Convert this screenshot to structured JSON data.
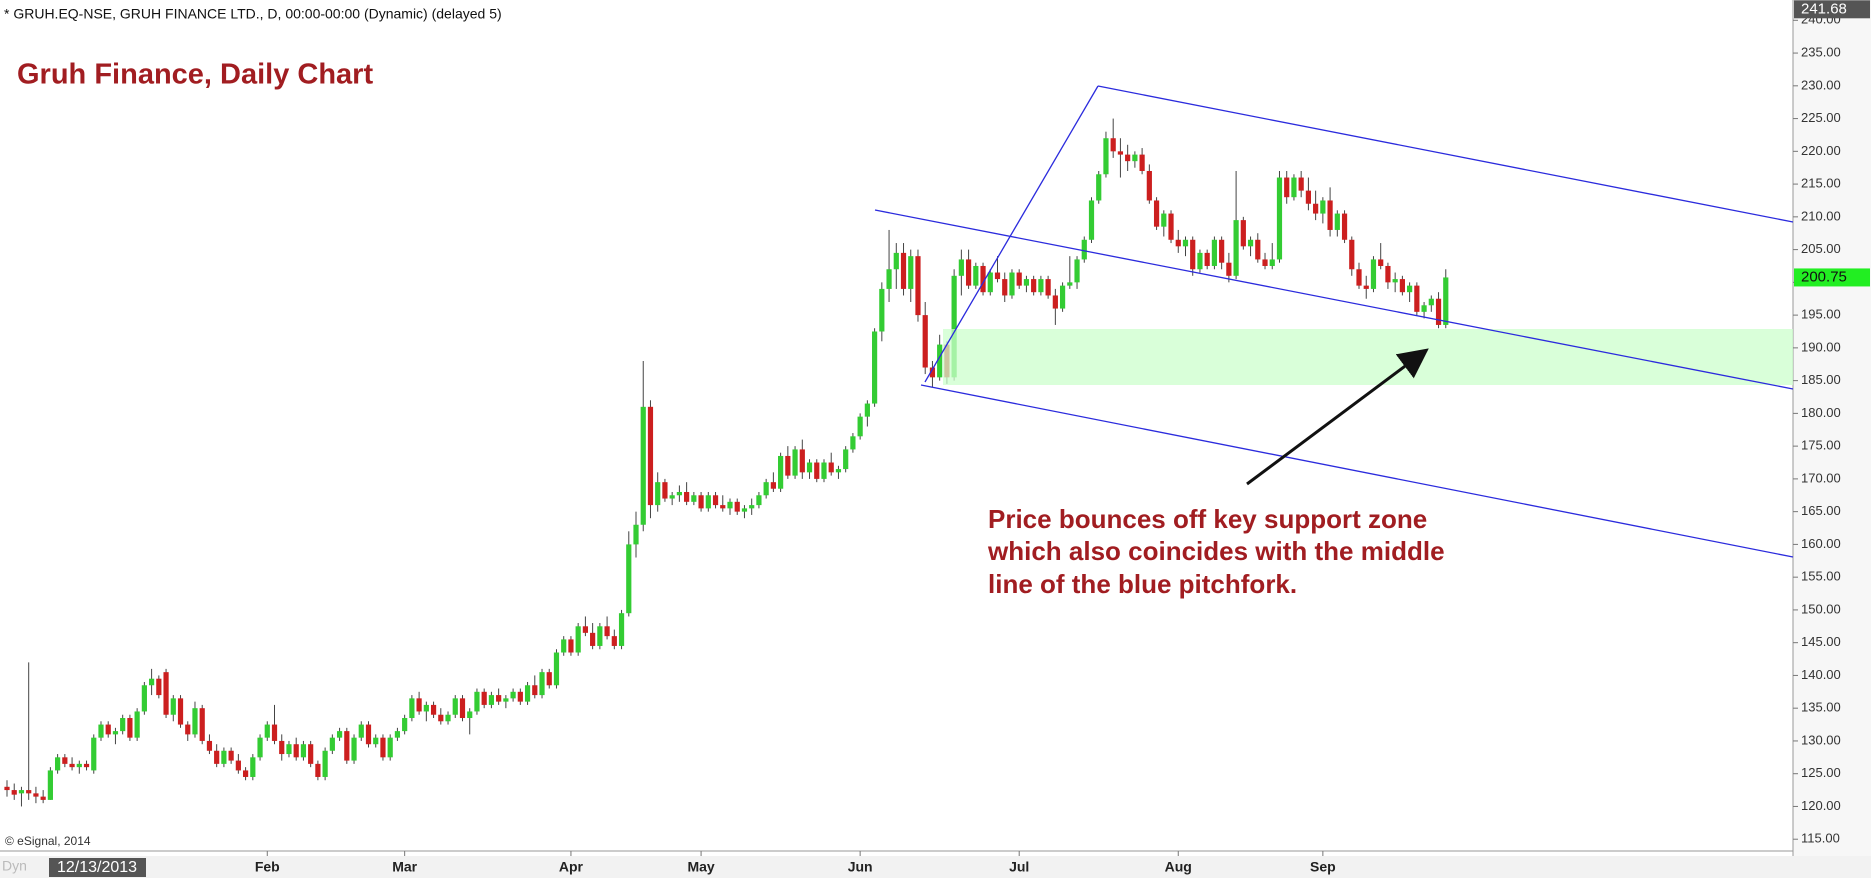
{
  "chart_data": {
    "type": "candlestick",
    "header": "* GRUH.EQ-NSE, GRUH FINANCE LTD., D, 00:00-00:00 (Dynamic) (delayed 5)",
    "title": "Gruh Finance, Daily Chart",
    "annotation": [
      "Price bounces off key support zone",
      "which also coincides with the middle",
      "line of the blue pitchfork."
    ],
    "copyright": "© eSignal, 2014",
    "cursor_prefix": "Dyn",
    "cursor_date": "12/13/2013",
    "up_color": "#33cc33",
    "down_color": "#cc1f1f",
    "wick_color": "#444444",
    "price_labels": [
      {
        "value": 241.68,
        "label": "241.68",
        "color": "#555555"
      },
      {
        "value": 200.75,
        "label": "200.75",
        "color": "#22ee22"
      }
    ],
    "ylim": [
      113.2,
      243.1
    ],
    "yticks": [
      {
        "value": 115,
        "label": "115.00"
      },
      {
        "value": 120,
        "label": "120.00"
      },
      {
        "value": 125,
        "label": "125.00"
      },
      {
        "value": 130,
        "label": "130.00"
      },
      {
        "value": 135,
        "label": "135.00"
      },
      {
        "value": 140,
        "label": "140.00"
      },
      {
        "value": 145,
        "label": "145.00"
      },
      {
        "value": 150,
        "label": "150.00"
      },
      {
        "value": 155,
        "label": "155.00"
      },
      {
        "value": 160,
        "label": "160.00"
      },
      {
        "value": 165,
        "label": "165.00"
      },
      {
        "value": 170,
        "label": "170.00"
      },
      {
        "value": 175,
        "label": "175.00"
      },
      {
        "value": 180,
        "label": "180.00"
      },
      {
        "value": 185,
        "label": "185.00"
      },
      {
        "value": 190,
        "label": "190.00"
      },
      {
        "value": 195,
        "label": "195.00"
      },
      {
        "value": 200,
        "label": "200.00"
      },
      {
        "value": 205,
        "label": "205.00"
      },
      {
        "value": 210,
        "label": "210.00"
      },
      {
        "value": 215,
        "label": "215.00"
      },
      {
        "value": 220,
        "label": "220.00"
      },
      {
        "value": 225,
        "label": "225.00"
      },
      {
        "value": 230,
        "label": "230.00"
      },
      {
        "value": 235,
        "label": "235.00"
      },
      {
        "value": 240,
        "label": "240.00"
      }
    ],
    "categories": [
      null,
      null,
      null,
      null,
      null,
      null,
      null,
      null,
      null,
      null,
      null,
      null,
      null,
      null,
      null,
      null,
      null,
      null,
      null,
      null,
      null,
      null,
      null,
      null,
      null,
      null,
      null,
      null,
      null,
      null,
      null,
      null,
      null,
      null,
      null,
      null,
      "Feb",
      null,
      null,
      null,
      null,
      null,
      null,
      null,
      null,
      null,
      null,
      null,
      null,
      null,
      null,
      null,
      null,
      null,
      null,
      "Mar",
      null,
      null,
      null,
      null,
      null,
      null,
      null,
      null,
      null,
      null,
      null,
      null,
      null,
      null,
      null,
      null,
      null,
      null,
      null,
      null,
      null,
      null,
      "Apr",
      null,
      null,
      null,
      null,
      null,
      null,
      null,
      null,
      null,
      null,
      null,
      null,
      null,
      null,
      null,
      null,
      null,
      "May",
      null,
      null,
      null,
      null,
      null,
      null,
      null,
      null,
      null,
      null,
      null,
      null,
      null,
      null,
      null,
      null,
      null,
      null,
      null,
      null,
      null,
      "Jun",
      null,
      null,
      null,
      null,
      null,
      null,
      null,
      null,
      null,
      null,
      null,
      null,
      null,
      null,
      null,
      null,
      null,
      null,
      null,
      null,
      null,
      "Jul",
      null,
      null,
      null,
      null,
      null,
      null,
      null,
      null,
      null,
      null,
      null,
      null,
      null,
      null,
      null,
      null,
      null,
      null,
      null,
      null,
      null,
      "Aug",
      null,
      null,
      null,
      null,
      null,
      null,
      null,
      null,
      null,
      null,
      null,
      null,
      null,
      null,
      null,
      null,
      null,
      null,
      null,
      "Sep",
      null,
      null,
      null,
      null,
      null,
      null,
      null,
      null,
      null,
      null,
      null,
      null,
      null,
      null,
      null,
      null,
      null
    ],
    "values": [
      [
        123,
        124,
        121.5,
        122.5
      ],
      [
        122.5,
        123.5,
        121,
        121.8
      ],
      [
        122,
        123,
        120,
        122.5
      ],
      [
        122.5,
        142,
        121,
        122
      ],
      [
        122,
        123,
        120.5,
        121.5
      ],
      [
        121.5,
        122.5,
        120.5,
        121
      ],
      [
        121,
        126,
        121,
        125.5
      ],
      [
        125.5,
        128,
        125,
        127.5
      ],
      [
        127.5,
        128,
        126,
        126.5
      ],
      [
        126.5,
        127.5,
        125.5,
        126
      ],
      [
        126,
        127,
        125,
        126.5
      ],
      [
        126.5,
        127,
        125.5,
        126
      ],
      [
        125.5,
        131,
        125,
        130.5
      ],
      [
        130.5,
        133,
        130,
        132.5
      ],
      [
        132.5,
        133,
        130.5,
        131
      ],
      [
        131,
        132,
        129.5,
        131.5
      ],
      [
        131.5,
        134,
        131,
        133.5
      ],
      [
        133.5,
        134,
        130,
        130.5
      ],
      [
        130.5,
        135,
        130,
        134.5
      ],
      [
        134.5,
        139,
        134,
        138.5
      ],
      [
        138.5,
        141,
        137,
        139.5
      ],
      [
        139.5,
        140,
        136.5,
        137
      ],
      [
        140.5,
        141,
        133.5,
        134
      ],
      [
        134,
        137,
        133,
        136.5
      ],
      [
        136.5,
        137,
        132,
        132.5
      ],
      [
        132.5,
        133,
        130,
        131
      ],
      [
        131,
        136,
        130.5,
        135
      ],
      [
        135,
        135.5,
        129.5,
        130
      ],
      [
        130,
        131,
        128,
        128.5
      ],
      [
        128.5,
        129.5,
        126,
        126.5
      ],
      [
        126.5,
        129,
        126,
        128.5
      ],
      [
        128.5,
        129,
        126.5,
        127
      ],
      [
        127,
        128,
        125,
        125.5
      ],
      [
        125.5,
        126,
        124,
        124.5
      ],
      [
        124.5,
        128,
        124,
        127.5
      ],
      [
        127.5,
        131,
        127,
        130.5
      ],
      [
        130.5,
        133,
        130,
        132.5
      ],
      [
        132.5,
        135.5,
        129.5,
        130
      ],
      [
        130,
        131,
        127,
        128
      ],
      [
        128,
        130,
        127.5,
        129.5
      ],
      [
        129.5,
        130.5,
        127,
        127.5
      ],
      [
        127.5,
        130,
        127,
        129.5
      ],
      [
        129.5,
        130,
        126,
        126.5
      ],
      [
        126.5,
        127,
        124,
        124.5
      ],
      [
        124.5,
        129,
        124,
        128.5
      ],
      [
        128.5,
        131,
        128,
        130.5
      ],
      [
        130.5,
        132,
        130,
        131.5
      ],
      [
        131.5,
        132,
        126.5,
        127
      ],
      [
        127,
        131,
        126.5,
        130.5
      ],
      [
        130.5,
        133,
        130,
        132.5
      ],
      [
        132.5,
        133,
        129,
        129.5
      ],
      [
        129.5,
        131,
        129,
        130.5
      ],
      [
        130.5,
        131,
        127,
        127.5
      ],
      [
        127.5,
        131,
        127,
        130.5
      ],
      [
        130.5,
        132,
        130,
        131.5
      ],
      [
        131.5,
        134,
        131,
        133.5
      ],
      [
        133.5,
        137,
        133,
        136.5
      ],
      [
        136.5,
        137.5,
        134,
        134.5
      ],
      [
        134.5,
        136,
        133,
        135.5
      ],
      [
        135.5,
        136,
        133.5,
        134
      ],
      [
        134,
        135,
        132.5,
        133
      ],
      [
        133,
        134.5,
        132.5,
        134
      ],
      [
        134,
        137,
        133.5,
        136.5
      ],
      [
        136.5,
        137,
        133,
        133.5
      ],
      [
        133.5,
        135,
        131,
        134.5
      ],
      [
        134.5,
        138,
        134,
        137.5
      ],
      [
        137.5,
        138,
        135,
        135.5
      ],
      [
        135.5,
        137.5,
        135,
        137
      ],
      [
        137,
        138,
        135.5,
        136
      ],
      [
        136,
        137,
        135,
        136.5
      ],
      [
        136.5,
        138,
        136,
        137.5
      ],
      [
        137.5,
        138,
        135.5,
        136
      ],
      [
        136,
        139,
        135.5,
        138.5
      ],
      [
        138.5,
        140,
        136.5,
        137
      ],
      [
        137,
        141,
        136.5,
        140.5
      ],
      [
        140.5,
        141,
        138,
        138.5
      ],
      [
        138.5,
        144,
        138,
        143.5
      ],
      [
        143.5,
        146,
        143,
        145.5
      ],
      [
        145.5,
        146,
        143,
        143.5
      ],
      [
        143.5,
        148,
        143,
        147.5
      ],
      [
        147.5,
        149,
        146,
        146.5
      ],
      [
        146.5,
        148,
        144,
        144.5
      ],
      [
        144.5,
        148,
        144,
        147.5
      ],
      [
        147.5,
        149,
        145.5,
        146
      ],
      [
        146,
        147,
        144,
        144.5
      ],
      [
        144.5,
        150,
        144,
        149.5
      ],
      [
        149.5,
        162,
        149,
        160
      ],
      [
        160,
        165,
        158,
        163
      ],
      [
        163,
        188,
        162,
        181
      ],
      [
        181,
        182,
        164,
        166
      ],
      [
        166,
        171,
        165,
        169.5
      ],
      [
        169.5,
        170,
        166.5,
        167
      ],
      [
        167,
        168,
        166,
        167.5
      ],
      [
        167.5,
        169,
        166.5,
        168
      ],
      [
        168,
        169.5,
        166,
        166.5
      ],
      [
        166.5,
        168,
        166,
        167.5
      ],
      [
        167.5,
        168,
        165,
        165.5
      ],
      [
        165.5,
        168,
        165,
        167.5
      ],
      [
        167.5,
        168,
        165.5,
        166
      ],
      [
        166,
        167.5,
        165,
        165.5
      ],
      [
        165.5,
        167,
        164.5,
        166.5
      ],
      [
        166.5,
        167,
        164.5,
        165
      ],
      [
        165,
        166,
        164,
        165.5
      ],
      [
        165.5,
        167,
        164.5,
        166
      ],
      [
        166,
        168,
        165.5,
        167.5
      ],
      [
        167.5,
        170,
        167,
        169.5
      ],
      [
        169.5,
        171,
        168,
        168.5
      ],
      [
        168.5,
        174,
        168,
        173.5
      ],
      [
        173.5,
        175,
        170,
        170.5
      ],
      [
        170.5,
        175,
        170,
        174.5
      ],
      [
        174.5,
        176,
        170,
        171
      ],
      [
        171,
        173,
        170,
        172.5
      ],
      [
        172.5,
        173,
        169.5,
        170
      ],
      [
        170,
        173,
        169.5,
        172.5
      ],
      [
        172.5,
        174,
        170.5,
        171
      ],
      [
        171,
        172,
        170,
        171.5
      ],
      [
        171.5,
        175,
        171,
        174.5
      ],
      [
        174.5,
        177,
        174,
        176.5
      ],
      [
        176.5,
        180,
        176,
        179.5
      ],
      [
        179.5,
        182,
        178,
        181.5
      ],
      [
        181.5,
        193,
        181,
        192.5
      ],
      [
        192.5,
        200,
        191,
        199
      ],
      [
        199,
        208,
        197,
        202
      ],
      [
        202,
        206,
        199,
        204.5
      ],
      [
        204.5,
        206,
        198,
        199
      ],
      [
        199,
        205,
        197,
        204
      ],
      [
        204,
        205,
        194,
        195
      ],
      [
        195,
        197,
        186,
        187
      ],
      [
        187,
        188,
        184,
        185.5
      ],
      [
        185.5,
        192,
        185,
        190.5
      ],
      [
        190.5,
        191,
        184.5,
        185.5
      ],
      [
        185.5,
        202,
        185,
        201
      ],
      [
        201,
        205,
        198,
        203.5
      ],
      [
        203.5,
        205,
        199,
        199.5
      ],
      [
        199.5,
        203,
        199,
        202.5
      ],
      [
        202.5,
        203,
        198,
        198.5
      ],
      [
        198.5,
        202,
        198,
        201.5
      ],
      [
        201.5,
        204,
        200,
        200.5
      ],
      [
        200.5,
        201.5,
        197,
        198
      ],
      [
        198,
        202,
        197.5,
        201.5
      ],
      [
        201.5,
        202,
        199,
        199.5
      ],
      [
        199.5,
        201,
        198.5,
        200.5
      ],
      [
        200.5,
        201,
        198,
        198.5
      ],
      [
        198.5,
        201,
        198,
        200.5
      ],
      [
        200.5,
        201,
        197.5,
        198
      ],
      [
        198,
        199,
        193.5,
        196
      ],
      [
        196,
        200,
        195.5,
        199.5
      ],
      [
        199.5,
        204,
        199,
        200
      ],
      [
        200,
        204,
        199,
        203.5
      ],
      [
        203.5,
        207,
        203,
        206.5
      ],
      [
        206.5,
        213,
        206,
        212.5
      ],
      [
        212.5,
        217,
        212,
        216.5
      ],
      [
        216.5,
        223,
        216,
        222
      ],
      [
        222,
        225,
        219,
        220
      ],
      [
        220,
        222,
        216,
        219.5
      ],
      [
        219.5,
        221,
        217,
        218.5
      ],
      [
        218.5,
        220,
        217.5,
        219.5
      ],
      [
        219.5,
        220.5,
        216.5,
        217
      ],
      [
        217,
        218,
        212,
        212.5
      ],
      [
        212.5,
        213,
        208,
        208.5
      ],
      [
        208.5,
        211,
        207,
        210.5
      ],
      [
        210.5,
        211,
        206,
        206.5
      ],
      [
        206.5,
        208,
        204.5,
        205.5
      ],
      [
        205.5,
        207,
        204,
        206.5
      ],
      [
        206.5,
        207,
        201,
        202
      ],
      [
        202,
        205,
        201.5,
        204.5
      ],
      [
        204.5,
        205,
        202,
        202.5
      ],
      [
        202.5,
        207,
        202,
        206.5
      ],
      [
        206.5,
        207,
        202,
        203
      ],
      [
        203,
        204.5,
        200,
        201
      ],
      [
        201,
        217,
        200.5,
        209.5
      ],
      [
        209.5,
        210,
        205,
        205.5
      ],
      [
        205.5,
        207,
        204,
        206.5
      ],
      [
        206.5,
        207.5,
        203,
        203.5
      ],
      [
        203.5,
        204.5,
        202,
        202.5
      ],
      [
        202.5,
        206,
        202,
        203.5
      ],
      [
        203.5,
        217,
        203,
        216
      ],
      [
        216,
        217,
        212,
        213
      ],
      [
        213,
        216.5,
        212.5,
        216
      ],
      [
        216,
        217,
        213,
        214
      ],
      [
        214,
        216,
        211,
        212
      ],
      [
        212,
        214,
        209.5,
        210.5
      ],
      [
        210.5,
        213,
        209,
        212.5
      ],
      [
        212.5,
        214.5,
        207,
        208
      ],
      [
        208,
        211,
        207,
        210.5
      ],
      [
        210.5,
        211,
        206,
        206.5
      ],
      [
        206.5,
        207,
        201,
        202
      ],
      [
        202,
        203,
        199,
        199.5
      ],
      [
        199.5,
        201,
        197.5,
        199
      ],
      [
        199,
        204,
        198.5,
        203.5
      ],
      [
        203.5,
        206,
        202,
        202.5
      ],
      [
        202.5,
        203,
        199,
        200
      ],
      [
        200,
        201.5,
        198.5,
        200.5
      ],
      [
        200.5,
        201,
        198,
        198.5
      ],
      [
        198.5,
        200,
        197,
        199.5
      ],
      [
        199.5,
        200,
        195,
        195.5
      ],
      [
        195.5,
        197,
        194.5,
        196.5
      ],
      [
        196.5,
        198,
        195.5,
        197.5
      ],
      [
        197.5,
        198.5,
        193,
        193.5
      ],
      [
        193.5,
        202,
        193,
        200.75
      ]
    ]
  }
}
